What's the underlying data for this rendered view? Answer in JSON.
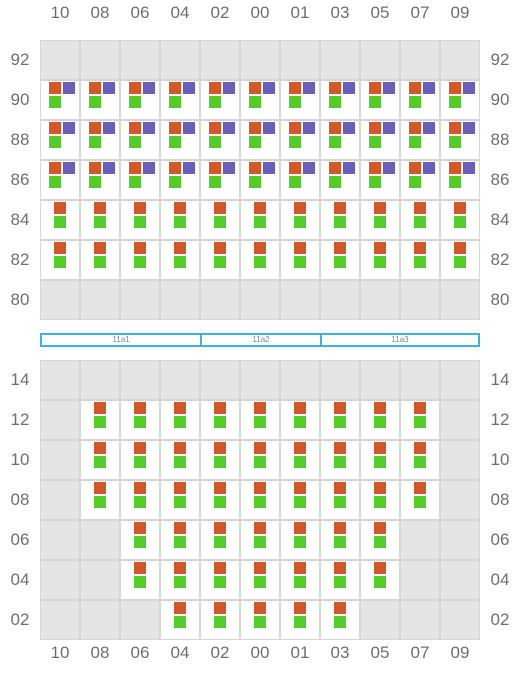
{
  "columns": [
    "10",
    "08",
    "06",
    "04",
    "02",
    "00",
    "01",
    "03",
    "05",
    "07",
    "09"
  ],
  "upper_rows": [
    "92",
    "90",
    "88",
    "86",
    "84",
    "82",
    "80"
  ],
  "lower_rows": [
    "14",
    "12",
    "10",
    "08",
    "06",
    "04",
    "02"
  ],
  "upper_grid": [
    "...........",
    "RBG RBG RBG RBG RBG RBG RBG RBG RBG RBG RBG",
    "RBG RBG RBG RBG RBG RBG RBG RBG RBG RBG RBG",
    "RBG RBG RBG RBG RBG RBG RBG RBG RBG RBG RBG",
    "RG RG RG RG RG RG RG RG RG RG RG",
    "RG RG RG RG RG RG RG RG RG RG RG",
    "..........."
  ],
  "lower_grid": [
    "...........",
    ". RG RG RG RG RG RG RG RG RG .",
    ". RG RG RG RG RG RG RG RG RG .",
    ". RG RG RG RG RG RG RG RG RG .",
    ". . RG RG RG RG RG RG RG . .",
    ". . RG RG RG RG RG RG RG . .",
    ". . . RG RG RG RG RG . . ."
  ],
  "segments": [
    {
      "label": "11a1",
      "from_col": 0,
      "to_col": 4
    },
    {
      "label": "11a2",
      "from_col": 4,
      "to_col": 7
    },
    {
      "label": "11a3",
      "from_col": 7,
      "to_col": 11
    }
  ],
  "colors": {
    "red": "#d4572a",
    "blue": "#6a5fb8",
    "green": "#55cc2a",
    "cyan": "#3db3d9"
  }
}
